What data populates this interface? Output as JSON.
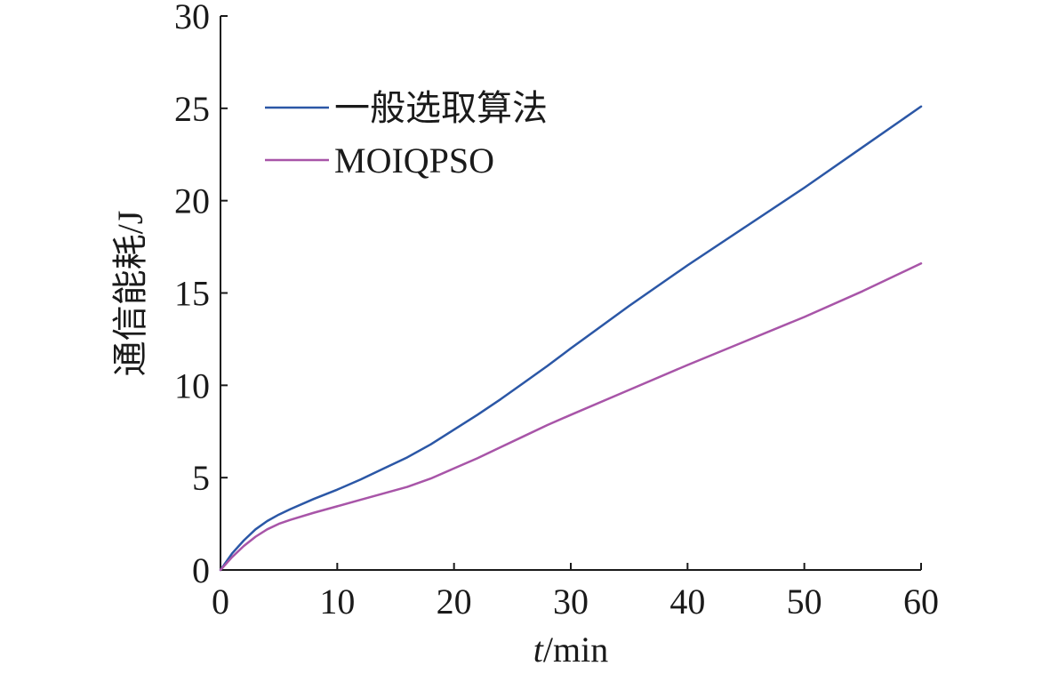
{
  "chart_data": {
    "type": "line",
    "xlabel_italic": "t",
    "xlabel_rest": "/min",
    "ylabel": "通信能耗/J",
    "xlim": [
      0,
      60
    ],
    "ylim": [
      0,
      30
    ],
    "xticks": [
      0,
      10,
      20,
      30,
      40,
      50,
      60
    ],
    "yticks": [
      0,
      5,
      10,
      15,
      20,
      25,
      30
    ],
    "grid": false,
    "legend_position": "top-left",
    "series": [
      {
        "name": "一般选取算法",
        "color": "#2b57a6",
        "x": [
          0,
          1,
          2,
          3,
          4,
          5,
          6,
          8,
          10,
          12,
          14,
          16,
          18,
          20,
          22,
          24,
          26,
          28,
          30,
          35,
          40,
          45,
          50,
          55,
          60
        ],
        "y": [
          0,
          0.9,
          1.6,
          2.2,
          2.65,
          3.0,
          3.3,
          3.85,
          4.35,
          4.9,
          5.5,
          6.1,
          6.8,
          7.6,
          8.4,
          9.25,
          10.15,
          11.05,
          12.0,
          14.3,
          16.5,
          18.6,
          20.7,
          22.9,
          25.1
        ]
      },
      {
        "name": "MOIQPSO",
        "color": "#a855a8",
        "x": [
          0,
          1,
          2,
          3,
          4,
          5,
          6,
          8,
          10,
          12,
          14,
          16,
          18,
          20,
          22,
          24,
          26,
          28,
          30,
          35,
          40,
          45,
          50,
          55,
          60
        ],
        "y": [
          0,
          0.7,
          1.3,
          1.8,
          2.2,
          2.5,
          2.72,
          3.1,
          3.45,
          3.8,
          4.15,
          4.5,
          4.95,
          5.5,
          6.05,
          6.65,
          7.25,
          7.85,
          8.4,
          9.75,
          11.1,
          12.4,
          13.7,
          15.1,
          16.6
        ]
      }
    ]
  }
}
